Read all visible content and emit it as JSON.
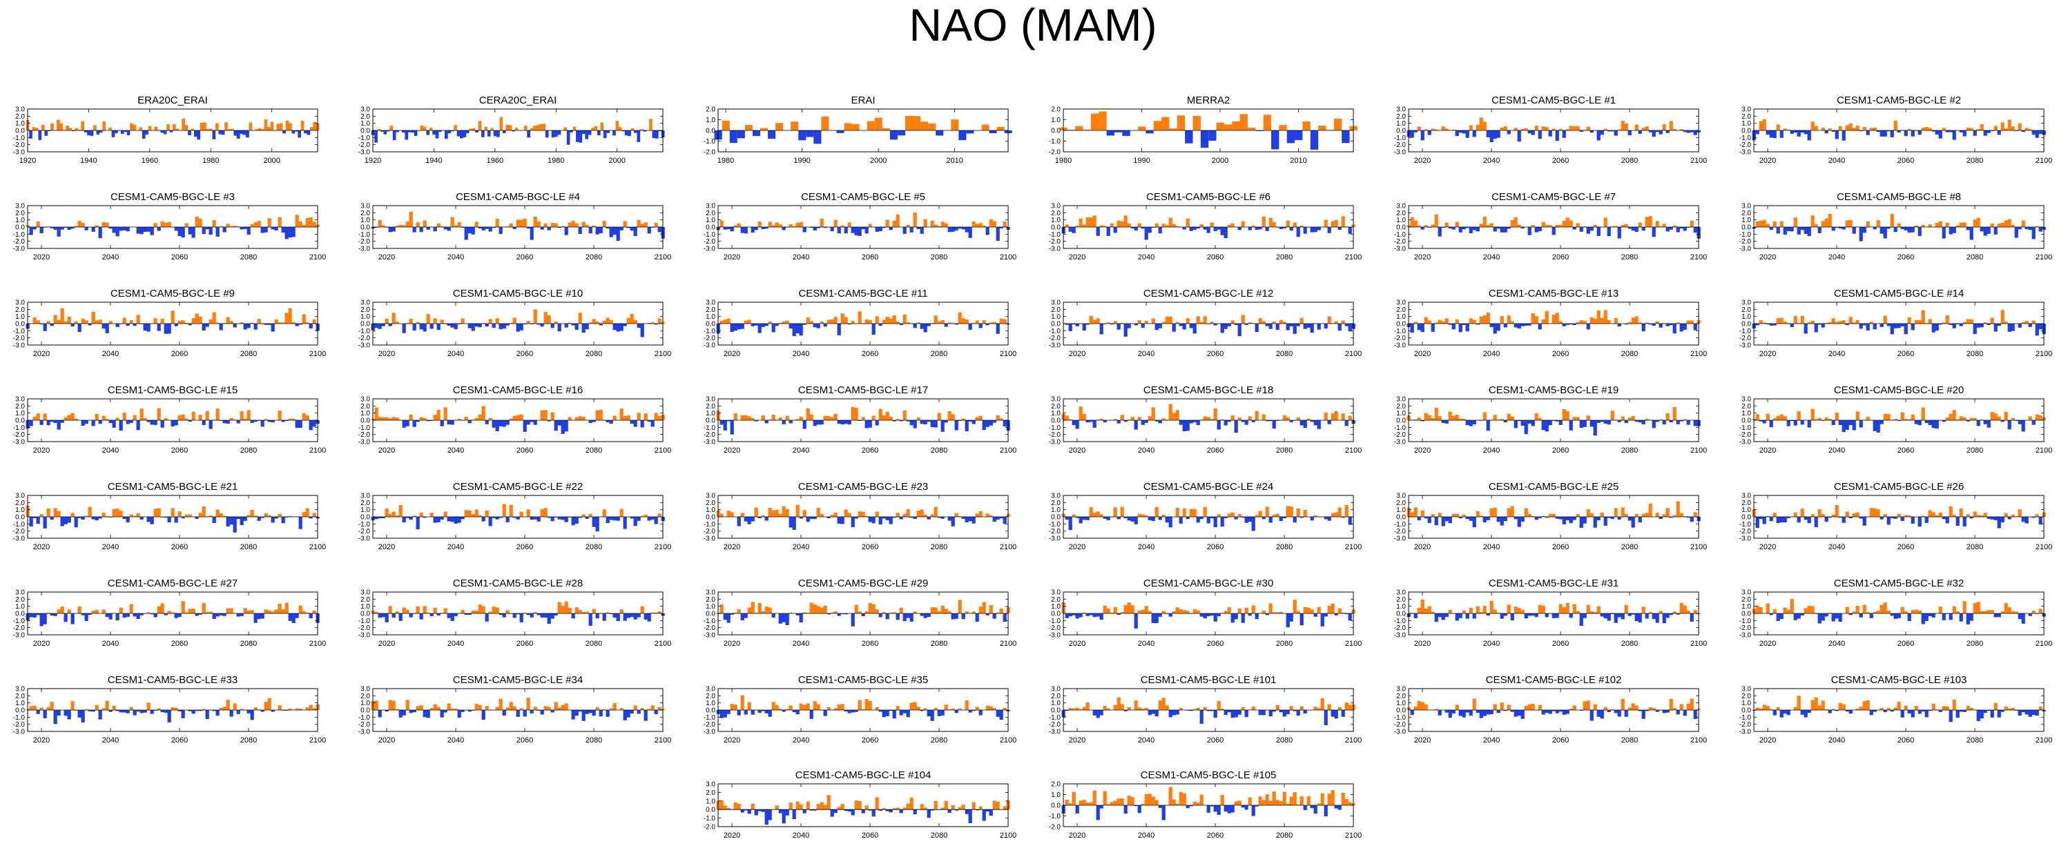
{
  "title": "NAO (MAM)",
  "colors": {
    "positive": "#ff7f0e",
    "negative": "#1f3fe0",
    "frame": "#000000"
  },
  "chart_data": {
    "type": "area",
    "y_ticks": [
      "3.0",
      "2.0",
      "1.0",
      "0.0",
      "-1.0",
      "-2.0",
      "-3.0"
    ],
    "y_ticks_narrow": [
      "2.0",
      "1.0",
      "0.0",
      "-1.0",
      "-2.0"
    ],
    "panels": [
      {
        "title": "ERA20C_ERAI",
        "x_start": 1920,
        "x_end": 2015,
        "ylim": [
          -3,
          3
        ],
        "x_ticks": [
          "1920",
          "1940",
          "1960",
          "1980",
          "2000"
        ],
        "seed": 11
      },
      {
        "title": "CERA20C_ERAI",
        "x_start": 1920,
        "x_end": 2015,
        "ylim": [
          -3,
          3
        ],
        "x_ticks": [
          "1920",
          "1940",
          "1960",
          "1980",
          "2000"
        ],
        "seed": 12
      },
      {
        "title": "ERAI",
        "x_start": 1979,
        "x_end": 2017,
        "ylim": [
          -2,
          2
        ],
        "x_ticks": [
          "1980",
          "1990",
          "2000",
          "2010"
        ],
        "seed": 13
      },
      {
        "title": "MERRA2",
        "x_start": 1980,
        "x_end": 2017,
        "ylim": [
          -2,
          2
        ],
        "x_ticks": [
          "1980",
          "1990",
          "2000",
          "2010"
        ],
        "seed": 14
      },
      {
        "title": "CESM1-CAM5-BGC-LE #1",
        "x_start": 2016,
        "x_end": 2100,
        "ylim": [
          -3,
          3
        ],
        "x_ticks": [
          "2020",
          "2040",
          "2060",
          "2080",
          "2100"
        ],
        "seed": 21
      },
      {
        "title": "CESM1-CAM5-BGC-LE #2",
        "x_start": 2016,
        "x_end": 2100,
        "ylim": [
          -3,
          3
        ],
        "x_ticks": [
          "2020",
          "2040",
          "2060",
          "2080",
          "2100"
        ],
        "seed": 22
      },
      {
        "title": "CESM1-CAM5-BGC-LE #3",
        "x_start": 2016,
        "x_end": 2100,
        "ylim": [
          -3,
          3
        ],
        "x_ticks": [
          "2020",
          "2040",
          "2060",
          "2080",
          "2100"
        ],
        "seed": 23
      },
      {
        "title": "CESM1-CAM5-BGC-LE #4",
        "x_start": 2016,
        "x_end": 2100,
        "ylim": [
          -3,
          3
        ],
        "x_ticks": [
          "2020",
          "2040",
          "2060",
          "2080",
          "2100"
        ],
        "seed": 24
      },
      {
        "title": "CESM1-CAM5-BGC-LE #5",
        "x_start": 2016,
        "x_end": 2100,
        "ylim": [
          -3,
          3
        ],
        "x_ticks": [
          "2020",
          "2040",
          "2060",
          "2080",
          "2100"
        ],
        "seed": 25
      },
      {
        "title": "CESM1-CAM5-BGC-LE #6",
        "x_start": 2016,
        "x_end": 2100,
        "ylim": [
          -3,
          3
        ],
        "x_ticks": [
          "2020",
          "2040",
          "2060",
          "2080",
          "2100"
        ],
        "seed": 26
      },
      {
        "title": "CESM1-CAM5-BGC-LE #7",
        "x_start": 2016,
        "x_end": 2100,
        "ylim": [
          -3,
          3
        ],
        "x_ticks": [
          "2020",
          "2040",
          "2060",
          "2080",
          "2100"
        ],
        "seed": 27
      },
      {
        "title": "CESM1-CAM5-BGC-LE #8",
        "x_start": 2016,
        "x_end": 2100,
        "ylim": [
          -3,
          3
        ],
        "x_ticks": [
          "2020",
          "2040",
          "2060",
          "2080",
          "2100"
        ],
        "seed": 28
      },
      {
        "title": "CESM1-CAM5-BGC-LE #9",
        "x_start": 2016,
        "x_end": 2100,
        "ylim": [
          -3,
          3
        ],
        "x_ticks": [
          "2020",
          "2040",
          "2060",
          "2080",
          "2100"
        ],
        "seed": 29
      },
      {
        "title": "CESM1-CAM5-BGC-LE #10",
        "x_start": 2016,
        "x_end": 2100,
        "ylim": [
          -3,
          3
        ],
        "x_ticks": [
          "2020",
          "2040",
          "2060",
          "2080",
          "2100"
        ],
        "seed": 30
      },
      {
        "title": "CESM1-CAM5-BGC-LE #11",
        "x_start": 2016,
        "x_end": 2100,
        "ylim": [
          -3,
          3
        ],
        "x_ticks": [
          "2020",
          "2040",
          "2060",
          "2080",
          "2100"
        ],
        "seed": 31
      },
      {
        "title": "CESM1-CAM5-BGC-LE #12",
        "x_start": 2016,
        "x_end": 2100,
        "ylim": [
          -3,
          3
        ],
        "x_ticks": [
          "2020",
          "2040",
          "2060",
          "2080",
          "2100"
        ],
        "seed": 32
      },
      {
        "title": "CESM1-CAM5-BGC-LE #13",
        "x_start": 2016,
        "x_end": 2100,
        "ylim": [
          -3,
          3
        ],
        "x_ticks": [
          "2020",
          "2040",
          "2060",
          "2080",
          "2100"
        ],
        "seed": 33
      },
      {
        "title": "CESM1-CAM5-BGC-LE #14",
        "x_start": 2016,
        "x_end": 2100,
        "ylim": [
          -3,
          3
        ],
        "x_ticks": [
          "2020",
          "2040",
          "2060",
          "2080",
          "2100"
        ],
        "seed": 34
      },
      {
        "title": "CESM1-CAM5-BGC-LE #15",
        "x_start": 2016,
        "x_end": 2100,
        "ylim": [
          -3,
          3
        ],
        "x_ticks": [
          "2020",
          "2040",
          "2060",
          "2080",
          "2100"
        ],
        "seed": 35
      },
      {
        "title": "CESM1-CAM5-BGC-LE #16",
        "x_start": 2016,
        "x_end": 2100,
        "ylim": [
          -3,
          3
        ],
        "x_ticks": [
          "2020",
          "2040",
          "2060",
          "2080",
          "2100"
        ],
        "seed": 36
      },
      {
        "title": "CESM1-CAM5-BGC-LE #17",
        "x_start": 2016,
        "x_end": 2100,
        "ylim": [
          -3,
          3
        ],
        "x_ticks": [
          "2020",
          "2040",
          "2060",
          "2080",
          "2100"
        ],
        "seed": 37
      },
      {
        "title": "CESM1-CAM5-BGC-LE #18",
        "x_start": 2016,
        "x_end": 2100,
        "ylim": [
          -3,
          3
        ],
        "x_ticks": [
          "2020",
          "2040",
          "2060",
          "2080",
          "2100"
        ],
        "seed": 38
      },
      {
        "title": "CESM1-CAM5-BGC-LE #19",
        "x_start": 2016,
        "x_end": 2100,
        "ylim": [
          -3,
          3
        ],
        "x_ticks": [
          "2020",
          "2040",
          "2060",
          "2080",
          "2100"
        ],
        "seed": 39
      },
      {
        "title": "CESM1-CAM5-BGC-LE #20",
        "x_start": 2016,
        "x_end": 2100,
        "ylim": [
          -3,
          3
        ],
        "x_ticks": [
          "2020",
          "2040",
          "2060",
          "2080",
          "2100"
        ],
        "seed": 40
      },
      {
        "title": "CESM1-CAM5-BGC-LE #21",
        "x_start": 2016,
        "x_end": 2100,
        "ylim": [
          -3,
          3
        ],
        "x_ticks": [
          "2020",
          "2040",
          "2060",
          "2080",
          "2100"
        ],
        "seed": 41
      },
      {
        "title": "CESM1-CAM5-BGC-LE #22",
        "x_start": 2016,
        "x_end": 2100,
        "ylim": [
          -3,
          3
        ],
        "x_ticks": [
          "2020",
          "2040",
          "2060",
          "2080",
          "2100"
        ],
        "seed": 42
      },
      {
        "title": "CESM1-CAM5-BGC-LE #23",
        "x_start": 2016,
        "x_end": 2100,
        "ylim": [
          -3,
          3
        ],
        "x_ticks": [
          "2020",
          "2040",
          "2060",
          "2080",
          "2100"
        ],
        "seed": 43
      },
      {
        "title": "CESM1-CAM5-BGC-LE #24",
        "x_start": 2016,
        "x_end": 2100,
        "ylim": [
          -3,
          3
        ],
        "x_ticks": [
          "2020",
          "2040",
          "2060",
          "2080",
          "2100"
        ],
        "seed": 44
      },
      {
        "title": "CESM1-CAM5-BGC-LE #25",
        "x_start": 2016,
        "x_end": 2100,
        "ylim": [
          -3,
          3
        ],
        "x_ticks": [
          "2020",
          "2040",
          "2060",
          "2080",
          "2100"
        ],
        "seed": 45
      },
      {
        "title": "CESM1-CAM5-BGC-LE #26",
        "x_start": 2016,
        "x_end": 2100,
        "ylim": [
          -3,
          3
        ],
        "x_ticks": [
          "2020",
          "2040",
          "2060",
          "2080",
          "2100"
        ],
        "seed": 46
      },
      {
        "title": "CESM1-CAM5-BGC-LE #27",
        "x_start": 2016,
        "x_end": 2100,
        "ylim": [
          -3,
          3
        ],
        "x_ticks": [
          "2020",
          "2040",
          "2060",
          "2080",
          "2100"
        ],
        "seed": 47
      },
      {
        "title": "CESM1-CAM5-BGC-LE #28",
        "x_start": 2016,
        "x_end": 2100,
        "ylim": [
          -3,
          3
        ],
        "x_ticks": [
          "2020",
          "2040",
          "2060",
          "2080",
          "2100"
        ],
        "seed": 48
      },
      {
        "title": "CESM1-CAM5-BGC-LE #29",
        "x_start": 2016,
        "x_end": 2100,
        "ylim": [
          -3,
          3
        ],
        "x_ticks": [
          "2020",
          "2040",
          "2060",
          "2080",
          "2100"
        ],
        "seed": 49
      },
      {
        "title": "CESM1-CAM5-BGC-LE #30",
        "x_start": 2016,
        "x_end": 2100,
        "ylim": [
          -3,
          3
        ],
        "x_ticks": [
          "2020",
          "2040",
          "2060",
          "2080",
          "2100"
        ],
        "seed": 50
      },
      {
        "title": "CESM1-CAM5-BGC-LE #31",
        "x_start": 2016,
        "x_end": 2100,
        "ylim": [
          -3,
          3
        ],
        "x_ticks": [
          "2020",
          "2040",
          "2060",
          "2080",
          "2100"
        ],
        "seed": 51
      },
      {
        "title": "CESM1-CAM5-BGC-LE #32",
        "x_start": 2016,
        "x_end": 2100,
        "ylim": [
          -3,
          3
        ],
        "x_ticks": [
          "2020",
          "2040",
          "2060",
          "2080",
          "2100"
        ],
        "seed": 52
      },
      {
        "title": "CESM1-CAM5-BGC-LE #33",
        "x_start": 2016,
        "x_end": 2100,
        "ylim": [
          -3,
          3
        ],
        "x_ticks": [
          "2020",
          "2040",
          "2060",
          "2080",
          "2100"
        ],
        "seed": 53
      },
      {
        "title": "CESM1-CAM5-BGC-LE #34",
        "x_start": 2016,
        "x_end": 2100,
        "ylim": [
          -3,
          3
        ],
        "x_ticks": [
          "2020",
          "2040",
          "2060",
          "2080",
          "2100"
        ],
        "seed": 54
      },
      {
        "title": "CESM1-CAM5-BGC-LE #35",
        "x_start": 2016,
        "x_end": 2100,
        "ylim": [
          -3,
          3
        ],
        "x_ticks": [
          "2020",
          "2040",
          "2060",
          "2080",
          "2100"
        ],
        "seed": 55
      },
      {
        "title": "CESM1-CAM5-BGC-LE #101",
        "x_start": 2016,
        "x_end": 2100,
        "ylim": [
          -3,
          3
        ],
        "x_ticks": [
          "2020",
          "2040",
          "2060",
          "2080",
          "2100"
        ],
        "seed": 56
      },
      {
        "title": "CESM1-CAM5-BGC-LE #102",
        "x_start": 2016,
        "x_end": 2100,
        "ylim": [
          -3,
          3
        ],
        "x_ticks": [
          "2020",
          "2040",
          "2060",
          "2080",
          "2100"
        ],
        "seed": 57
      },
      {
        "title": "CESM1-CAM5-BGC-LE #103",
        "x_start": 2016,
        "x_end": 2100,
        "ylim": [
          -3,
          3
        ],
        "x_ticks": [
          "2020",
          "2040",
          "2060",
          "2080",
          "2100"
        ],
        "seed": 58
      },
      {
        "title": "CESM1-CAM5-BGC-LE #104",
        "x_start": 2016,
        "x_end": 2100,
        "ylim": [
          -2,
          3
        ],
        "x_ticks": [
          "2020",
          "2040",
          "2060",
          "2080",
          "2100"
        ],
        "seed": 59
      },
      {
        "title": "CESM1-CAM5-BGC-LE #105",
        "x_start": 2016,
        "x_end": 2100,
        "ylim": [
          -2,
          2
        ],
        "x_ticks": [
          "2020",
          "2040",
          "2060",
          "2080",
          "2100"
        ],
        "seed": 60
      }
    ]
  }
}
